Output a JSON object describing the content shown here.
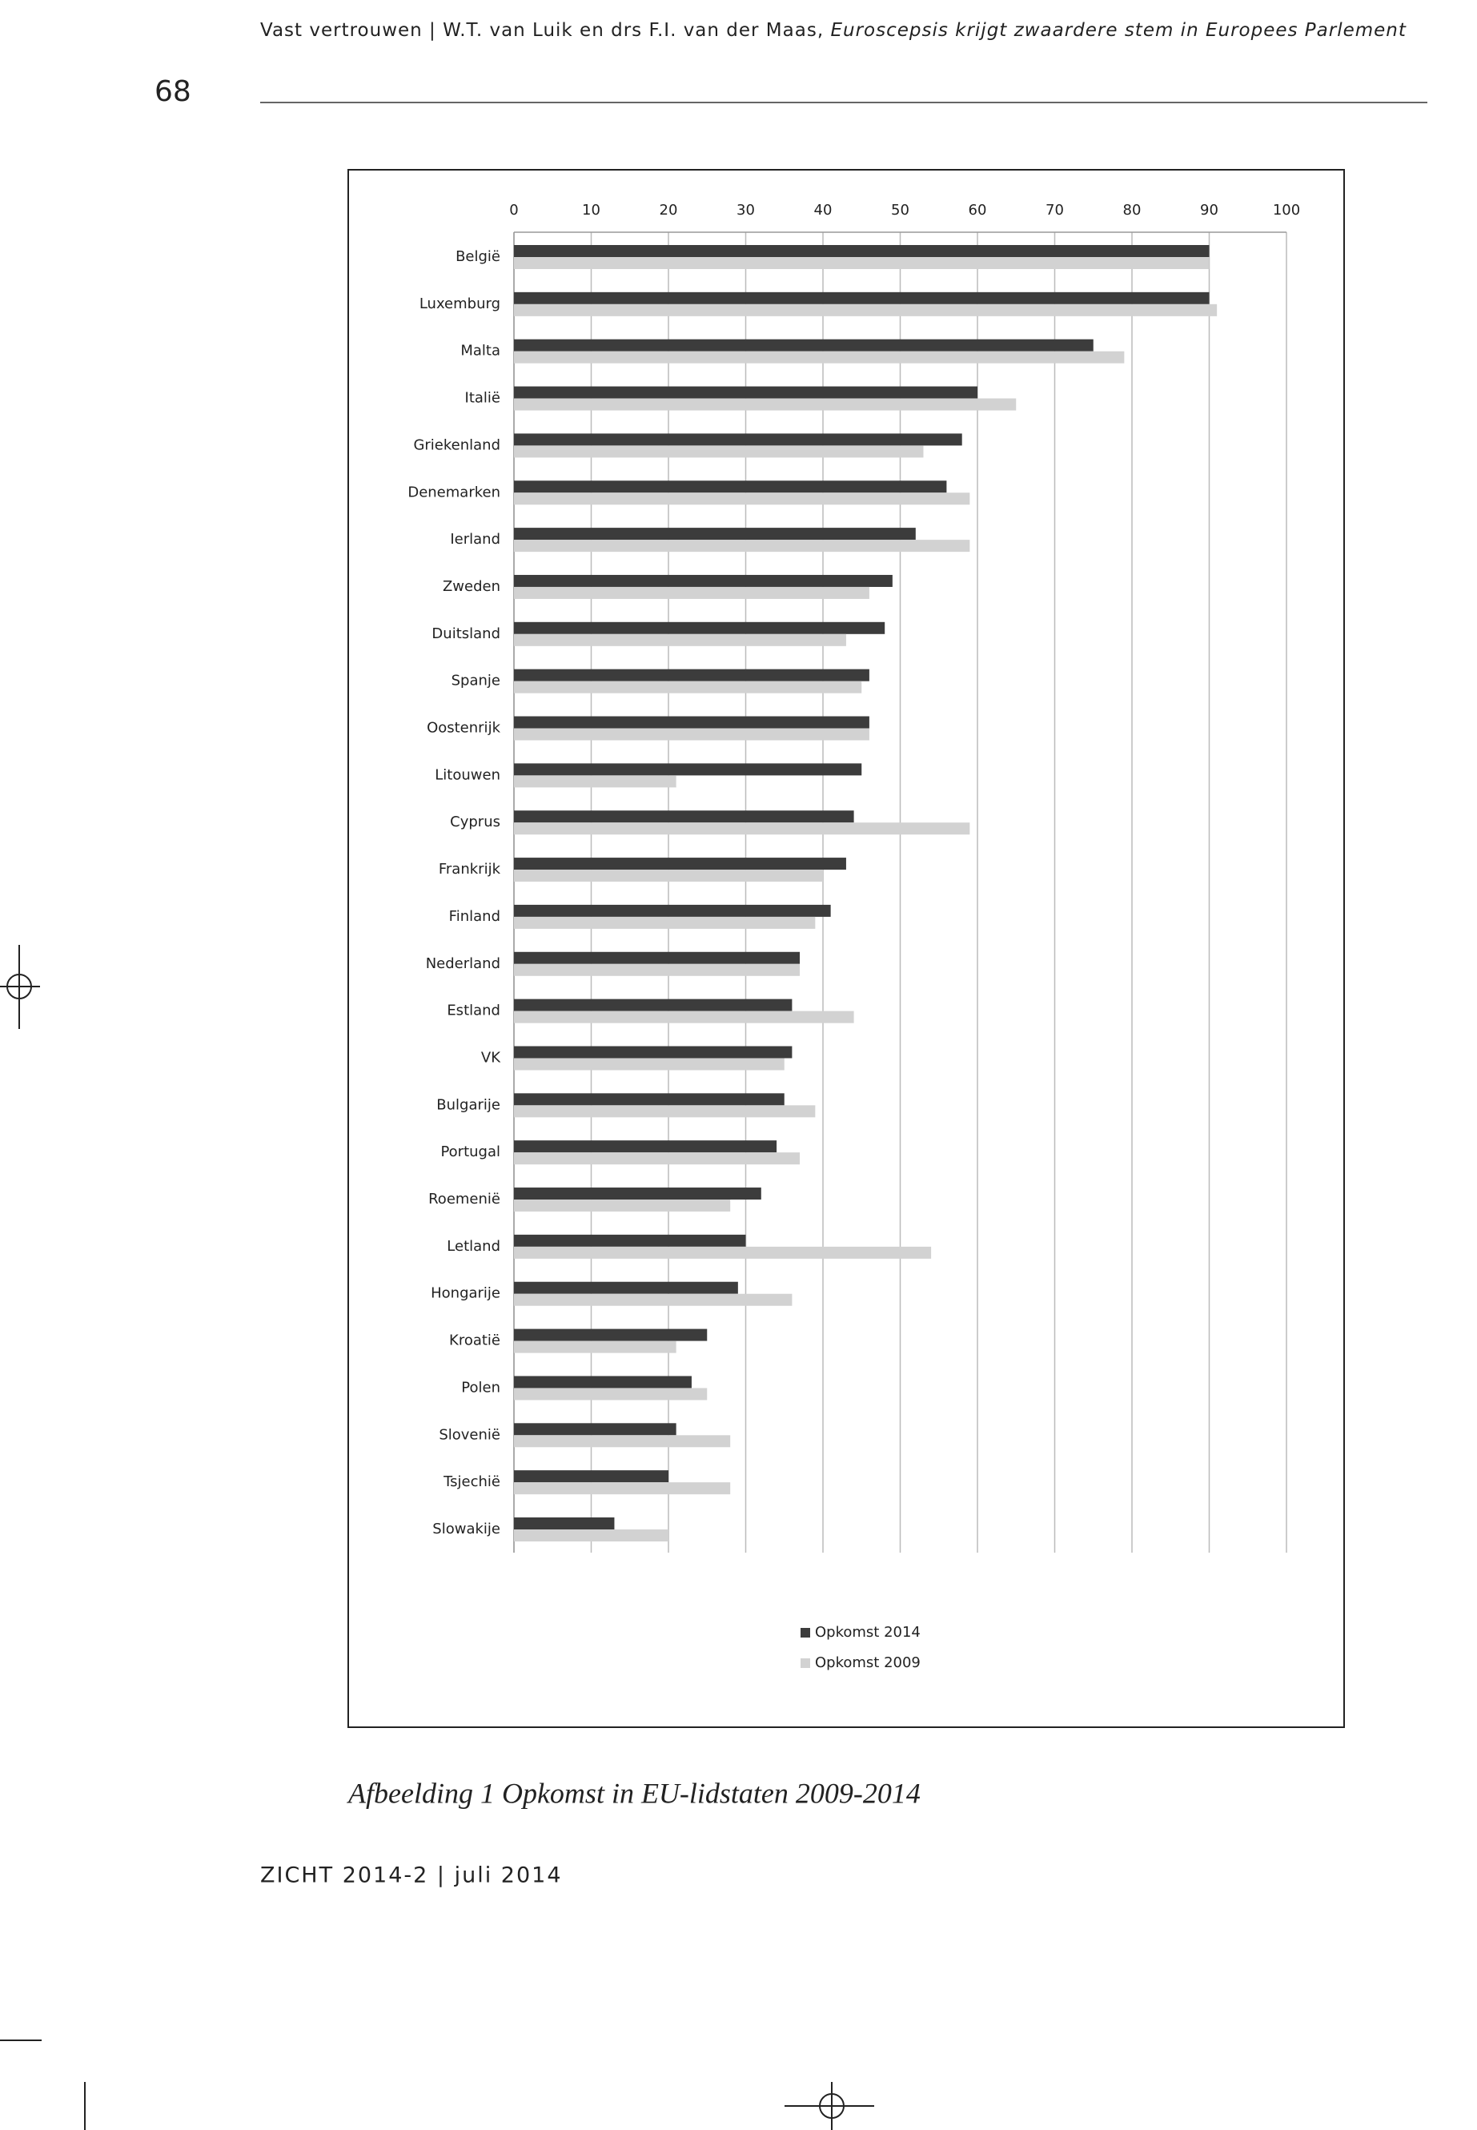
{
  "header": {
    "running_head": "Vast vertrouwen  |  W.T. van Luik en drs F.I. van der Maas,",
    "running_head_title": "Euroscepsis krijgt zwaardere stem in Europees Parlement",
    "page_number": "68"
  },
  "chart_data": {
    "type": "bar",
    "orientation": "horizontal",
    "categories": [
      "België",
      "Luxemburg",
      "Malta",
      "Italië",
      "Griekenland",
      "Denemarken",
      "Ierland",
      "Zweden",
      "Duitsland",
      "Spanje",
      "Oostenrijk",
      "Litouwen",
      "Cyprus",
      "Frankrijk",
      "Finland",
      "Nederland",
      "Estland",
      "VK",
      "Bulgarije",
      "Portugal",
      "Roemenië",
      "Letland",
      "Hongarije",
      "Kroatië",
      "Polen",
      "Slovenië",
      "Tsjechië",
      "Slowakije"
    ],
    "series": [
      {
        "name": "Opkomst 2014",
        "color": "#3c3c3c",
        "values": [
          90,
          90,
          75,
          60,
          58,
          56,
          52,
          49,
          48,
          46,
          46,
          45,
          44,
          43,
          41,
          37,
          36,
          36,
          35,
          34,
          32,
          30,
          29,
          25,
          23,
          21,
          20,
          13
        ]
      },
      {
        "name": "Opkomst 2009",
        "color": "#d2d2d2",
        "values": [
          90,
          91,
          79,
          65,
          53,
          59,
          59,
          46,
          43,
          45,
          46,
          21,
          59,
          40,
          39,
          37,
          44,
          35,
          39,
          37,
          28,
          54,
          36,
          21,
          25,
          28,
          28,
          20
        ]
      }
    ],
    "xlim": [
      0,
      100
    ],
    "xticks": [
      0,
      10,
      20,
      30,
      40,
      50,
      60,
      70,
      80,
      90,
      100
    ],
    "grid": true,
    "legend": "bottom"
  },
  "caption": "Afbeelding 1 Opkomst in EU-lidstaten 2009-2014",
  "footer": "ZICHT 2014-2 | juli 2014"
}
